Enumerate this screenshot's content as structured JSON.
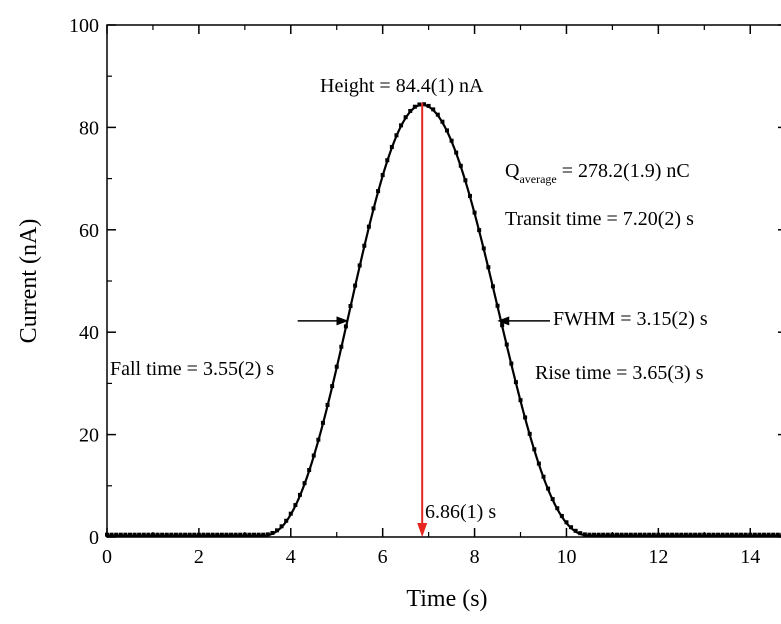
{
  "chart_data": {
    "type": "line",
    "xlabel": "Time (s)",
    "ylabel": "Current (nA)",
    "xlim": [
      0,
      14.8
    ],
    "ylim": [
      0,
      100
    ],
    "xticks": [
      "0",
      "2",
      "4",
      "6",
      "8",
      "10",
      "12",
      "14"
    ],
    "yticks": [
      "0",
      "20",
      "40",
      "60",
      "80",
      "100"
    ],
    "grid": false,
    "pulse": {
      "peak_time": 6.86,
      "peak_height": 84.4,
      "onset_time": 3.4,
      "end_time": 10.5,
      "rise_shape_power": 2.3,
      "fall_shape_power": 2.3
    },
    "series": [
      {
        "style": "dotted-markers",
        "color": "#000000"
      },
      {
        "style": "solid-line",
        "color": "#000000"
      }
    ],
    "annotations": {
      "height_label": "Height = 84.4(1) nA",
      "q_label_main": "Q",
      "q_label_sub": "average",
      "q_label_value": " = 278.2(1.9) nC",
      "transit_label": "Transit time = 7.20(2) s",
      "fwhm_label": "FWHM = 3.15(2) s",
      "fall_label": "Fall time = 3.55(2) s",
      "rise_label": "Rise time = 3.65(3) s",
      "peak_time_label": "6.86(1) s",
      "peak_time_color": "#e8261f",
      "fwhm_level": 42.2,
      "fwhm_left_time": 5.3,
      "fwhm_right_time": 8.45
    }
  }
}
